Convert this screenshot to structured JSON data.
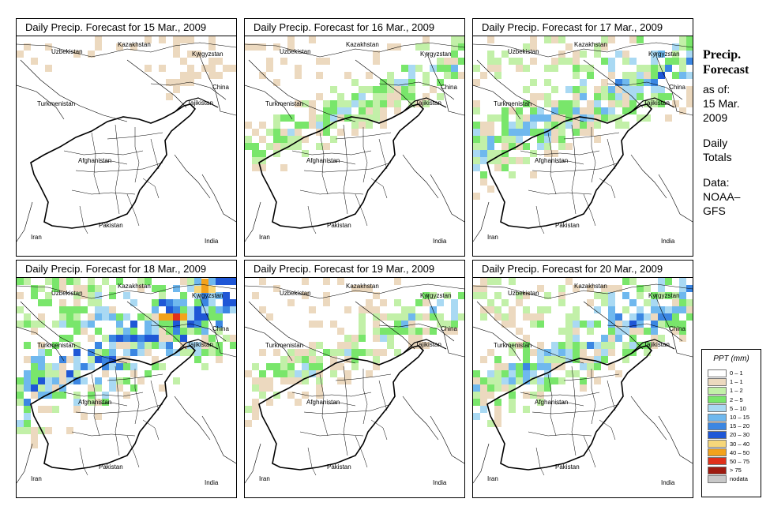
{
  "panels": [
    {
      "title": "Daily Precip. Forecast for  15 Mar., 2009",
      "intensity": 0
    },
    {
      "title": "Daily Precip. Forecast for  16 Mar., 2009",
      "intensity": 1
    },
    {
      "title": "Daily Precip. Forecast for  17 Mar., 2009",
      "intensity": 2
    },
    {
      "title": "Daily Precip. Forecast for  18 Mar., 2009",
      "intensity": 3
    },
    {
      "title": "Daily Precip. Forecast for  19 Mar., 2009",
      "intensity": 1
    },
    {
      "title": "Daily Precip. Forecast for  20 Mar., 2009",
      "intensity": 2
    }
  ],
  "map_labels": {
    "kazakhstan": "Kazakhstan",
    "uzbekistan": "Uzbekistan",
    "kyrgyzstan": "Kyrgyzstan",
    "china": "China",
    "turkmenistan": "Turkmenistan",
    "tajikistan": "Tajikistan",
    "afghanistan": "Afghanistan",
    "iran": "Iran",
    "pakistan": "Pakistan",
    "india": "India"
  },
  "sidebar": {
    "title_line1": "Precip.",
    "title_line2": "Forecast",
    "as_of": "as of:",
    "date_line1": "15 Mar.",
    "date_line2": "2009",
    "totals_line1": "Daily",
    "totals_line2": "Totals",
    "data_line1": "Data:",
    "data_line2": "NOAA–",
    "data_line3": "GFS"
  },
  "legend": {
    "title": "PPT (mm)",
    "items": [
      {
        "label": "0 – 1",
        "color": "#ffffff"
      },
      {
        "label": "1 – 1",
        "color": "#ecd9bf"
      },
      {
        "label": "1 – 2",
        "color": "#c2f0a8"
      },
      {
        "label": "2 – 5",
        "color": "#79e66b"
      },
      {
        "label": "5 – 10",
        "color": "#a9d9f3"
      },
      {
        "label": "10 – 15",
        "color": "#6fb8ee"
      },
      {
        "label": "15 – 20",
        "color": "#3b86e2"
      },
      {
        "label": "20 – 30",
        "color": "#1f57d6"
      },
      {
        "label": "30 – 40",
        "color": "#f6d77a"
      },
      {
        "label": "40 – 50",
        "color": "#f3a21c"
      },
      {
        "label": "50 – 75",
        "color": "#e0301a"
      },
      {
        "label": "> 75",
        "color": "#9e1b10"
      },
      {
        "label": "nodata",
        "color": "#c8c8c8"
      }
    ]
  }
}
